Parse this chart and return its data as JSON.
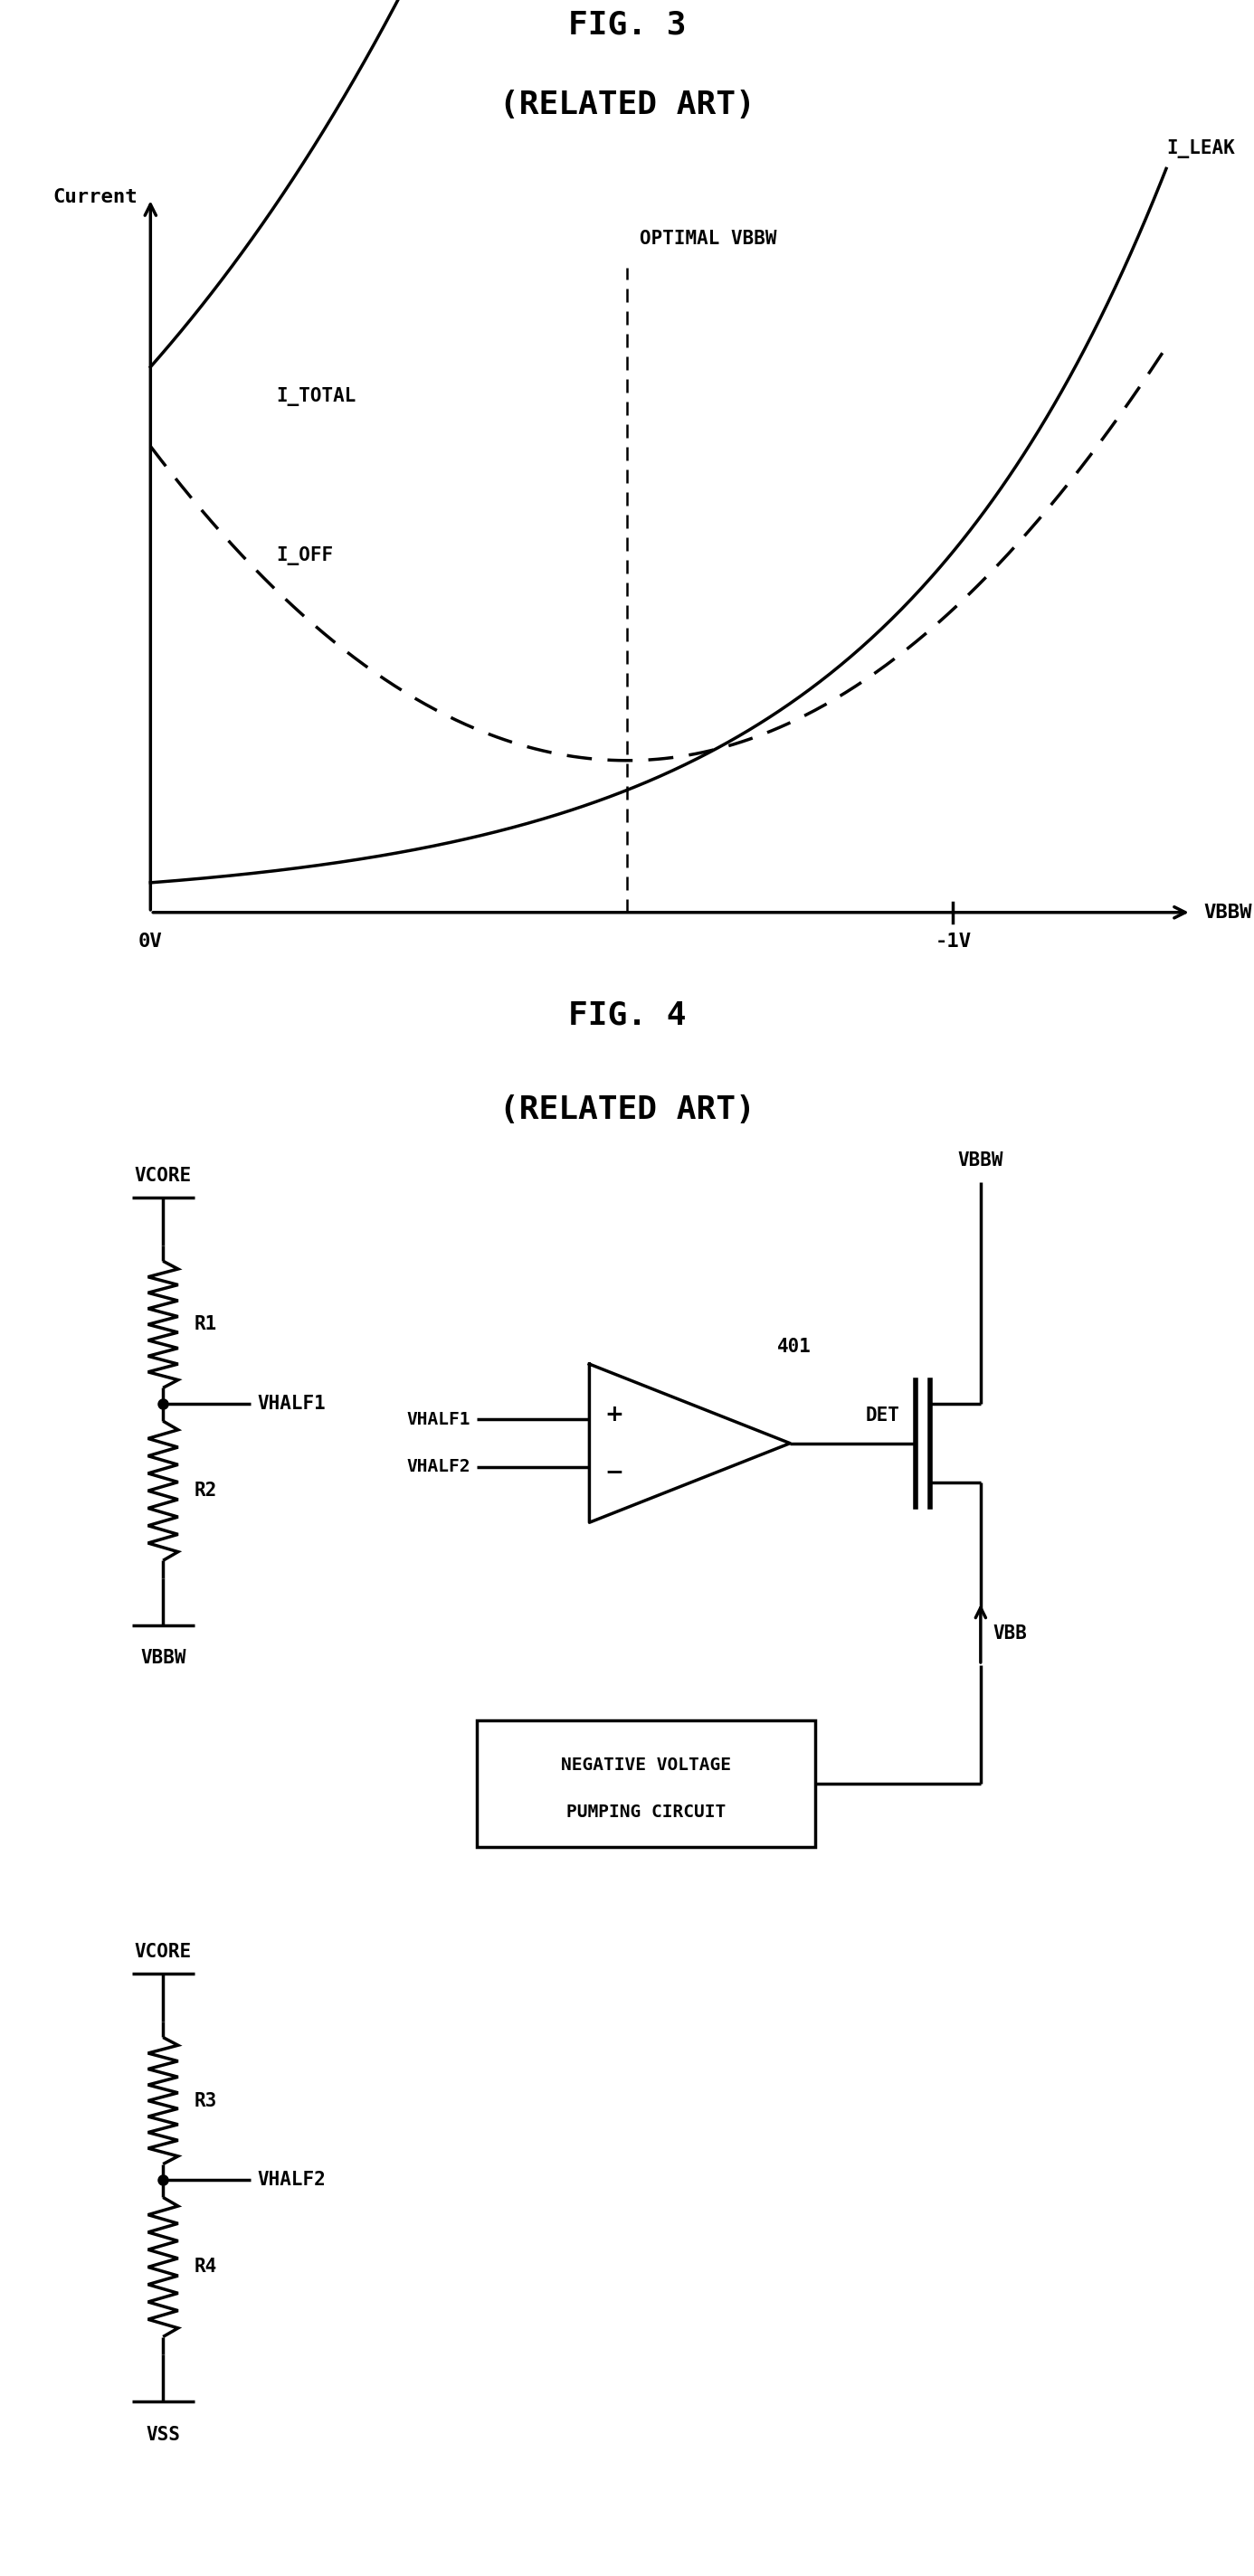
{
  "fig3_title": "FIG. 3",
  "fig3_subtitle": "(RELATED ART)",
  "fig4_title": "FIG. 4",
  "fig4_subtitle": "(RELATED ART)",
  "bg": "#ffffff",
  "lc": "#000000",
  "lw": 2.5,
  "title_fs": 26,
  "label_fs": 16,
  "curve_lw": 2.5
}
